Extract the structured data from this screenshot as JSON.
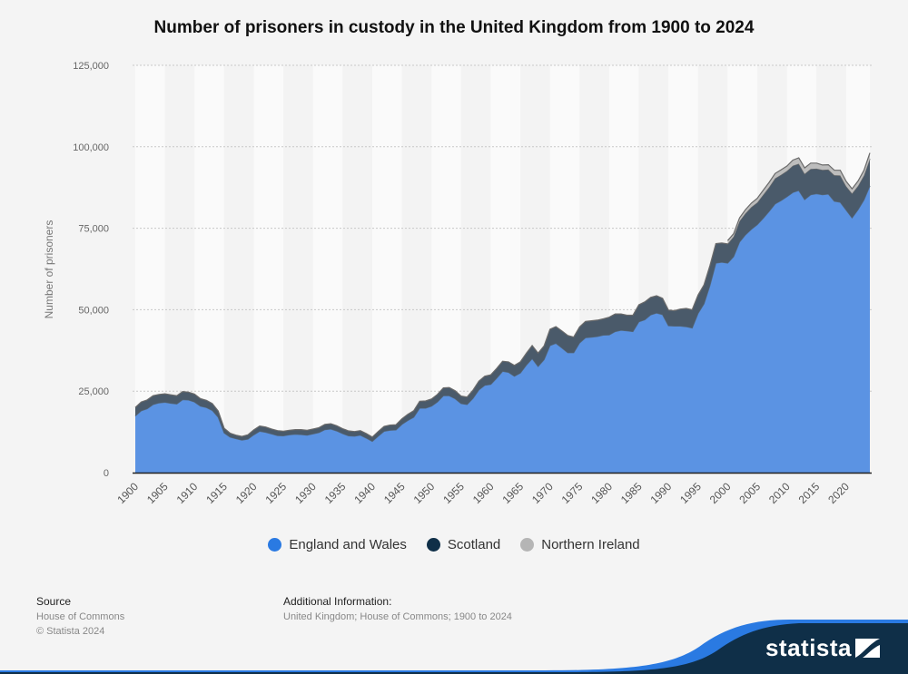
{
  "chart_data": {
    "type": "area",
    "stacked": true,
    "title": "Number of prisoners in custody in the United Kingdom from 1900 to 2024",
    "xlabel": "",
    "ylabel": "Number of prisoners",
    "ylim": [
      0,
      125000
    ],
    "yticks": [
      0,
      25000,
      50000,
      75000,
      100000,
      125000
    ],
    "ytick_labels": [
      "0",
      "25,000",
      "50,000",
      "75,000",
      "100,000",
      "125,000"
    ],
    "xlim": [
      1900,
      2024
    ],
    "xticks": [
      1900,
      1905,
      1910,
      1915,
      1920,
      1925,
      1930,
      1935,
      1940,
      1945,
      1950,
      1955,
      1960,
      1965,
      1970,
      1975,
      1980,
      1985,
      1990,
      1995,
      2000,
      2005,
      2010,
      2015,
      2020
    ],
    "grid": true,
    "legend_position": "bottom",
    "x": [
      1900,
      1901,
      1902,
      1903,
      1904,
      1905,
      1906,
      1907,
      1908,
      1909,
      1910,
      1911,
      1912,
      1913,
      1914,
      1915,
      1916,
      1917,
      1918,
      1919,
      1920,
      1921,
      1922,
      1923,
      1924,
      1925,
      1926,
      1927,
      1928,
      1929,
      1930,
      1931,
      1932,
      1933,
      1934,
      1935,
      1936,
      1937,
      1938,
      1939,
      1940,
      1941,
      1942,
      1943,
      1944,
      1945,
      1946,
      1947,
      1948,
      1949,
      1950,
      1951,
      1952,
      1953,
      1954,
      1955,
      1956,
      1957,
      1958,
      1959,
      1960,
      1961,
      1962,
      1963,
      1964,
      1965,
      1966,
      1967,
      1968,
      1969,
      1970,
      1971,
      1972,
      1973,
      1974,
      1975,
      1976,
      1977,
      1978,
      1979,
      1980,
      1981,
      1982,
      1983,
      1984,
      1985,
      1986,
      1987,
      1988,
      1989,
      1990,
      1991,
      1992,
      1993,
      1994,
      1995,
      1996,
      1997,
      1998,
      1999,
      2000,
      2001,
      2002,
      2003,
      2004,
      2005,
      2006,
      2007,
      2008,
      2009,
      2010,
      2011,
      2012,
      2013,
      2014,
      2015,
      2016,
      2017,
      2018,
      2019,
      2020,
      2021,
      2022,
      2023,
      2024
    ],
    "series": [
      {
        "name": "England and Wales",
        "color": "#2a7ae2",
        "values": [
          17400,
          19000,
          19600,
          20900,
          21400,
          21600,
          21300,
          21100,
          22400,
          22300,
          21700,
          20400,
          20000,
          19100,
          17000,
          12200,
          10900,
          10400,
          10000,
          10300,
          11600,
          12700,
          12400,
          11900,
          11400,
          11300,
          11600,
          11800,
          11700,
          11500,
          11900,
          12300,
          13200,
          13400,
          12800,
          12000,
          11300,
          11200,
          11500,
          10600,
          9600,
          11200,
          12700,
          13000,
          13100,
          14800,
          16000,
          17000,
          19800,
          19800,
          20400,
          21700,
          23600,
          23600,
          22700,
          21200,
          20900,
          22800,
          25400,
          26800,
          27100,
          29000,
          31100,
          30800,
          29600,
          30600,
          33000,
          35000,
          32600,
          34700,
          39000,
          39700,
          38300,
          36800,
          36800,
          39800,
          41400,
          41600,
          41800,
          42200,
          42300,
          43300,
          43700,
          43500,
          43300,
          46300,
          46900,
          48400,
          49000,
          48500,
          45100,
          45000,
          45000,
          44800,
          44400,
          48900,
          51800,
          57400,
          64300,
          64600,
          64300,
          66300,
          70800,
          73000,
          74700,
          76100,
          78100,
          80200,
          82500,
          83500,
          84700,
          86000,
          86600,
          83800,
          85300,
          85600,
          85300,
          85500,
          83300,
          83000,
          80600,
          78200,
          80700,
          83700,
          88000
        ]
      },
      {
        "name": "Scotland",
        "color": "#0f2f48",
        "values": [
          2600,
          2700,
          2700,
          2700,
          2600,
          2600,
          2600,
          2500,
          2500,
          2400,
          2400,
          2300,
          2200,
          2100,
          1900,
          1400,
          1200,
          1100,
          1100,
          1300,
          1500,
          1600,
          1600,
          1500,
          1500,
          1400,
          1400,
          1400,
          1500,
          1500,
          1500,
          1500,
          1600,
          1600,
          1600,
          1500,
          1500,
          1400,
          1400,
          1400,
          1300,
          1400,
          1500,
          1600,
          1600,
          1700,
          1900,
          2000,
          2100,
          2200,
          2200,
          2300,
          2400,
          2500,
          2400,
          2300,
          2300,
          2500,
          2700,
          2800,
          2900,
          3000,
          3100,
          3200,
          3300,
          3400,
          3600,
          4000,
          4100,
          4200,
          5000,
          5100,
          5200,
          5300,
          4800,
          4900,
          5000,
          5000,
          5000,
          5000,
          5400,
          5400,
          5000,
          4800,
          5000,
          5200,
          5500,
          5400,
          5300,
          5000,
          4800,
          4700,
          5200,
          5600,
          5600,
          5600,
          5800,
          6100,
          6000,
          5900,
          5900,
          6100,
          6400,
          6600,
          6800,
          6800,
          7200,
          7400,
          7800,
          7900,
          7900,
          8200,
          8200,
          7900,
          7900,
          7700,
          7600,
          7500,
          8000,
          8200,
          7300,
          7500,
          7300,
          7500,
          8300
        ]
      },
      {
        "name": "Northern Ireland",
        "color": "#b5b5b5",
        "values": [
          0,
          0,
          0,
          0,
          0,
          0,
          0,
          0,
          0,
          0,
          0,
          0,
          0,
          0,
          0,
          0,
          0,
          0,
          0,
          0,
          0,
          0,
          0,
          0,
          0,
          0,
          0,
          0,
          0,
          0,
          0,
          0,
          0,
          0,
          0,
          0,
          0,
          0,
          0,
          0,
          0,
          0,
          0,
          0,
          0,
          0,
          0,
          0,
          0,
          0,
          0,
          0,
          0,
          0,
          0,
          0,
          0,
          0,
          0,
          0,
          0,
          0,
          0,
          0,
          0,
          0,
          0,
          0,
          0,
          0,
          0,
          0,
          0,
          0,
          0,
          0,
          0,
          0,
          0,
          0,
          0,
          0,
          0,
          0,
          0,
          0,
          0,
          0,
          0,
          0,
          0,
          0,
          0,
          0,
          0,
          0,
          0,
          0,
          0,
          0,
          1000,
          900,
          1000,
          1100,
          1200,
          1300,
          1400,
          1500,
          1500,
          1500,
          1500,
          1700,
          1800,
          1800,
          1800,
          1700,
          1500,
          1500,
          1500,
          1600,
          1500,
          1400,
          1500,
          1600,
          1800
        ]
      }
    ]
  },
  "legend": [
    {
      "label": "England and Wales",
      "color": "#2a7ae2"
    },
    {
      "label": "Scotland",
      "color": "#0f2f48"
    },
    {
      "label": "Northern Ireland",
      "color": "#b5b5b5"
    }
  ],
  "footer": {
    "source_heading": "Source",
    "source_line1": "House of Commons",
    "source_line2": "© Statista 2024",
    "info_heading": "Additional Information:",
    "info_text": "United Kingdom; House of Commons; 1900 to 2024"
  },
  "brand": {
    "name": "statista"
  }
}
